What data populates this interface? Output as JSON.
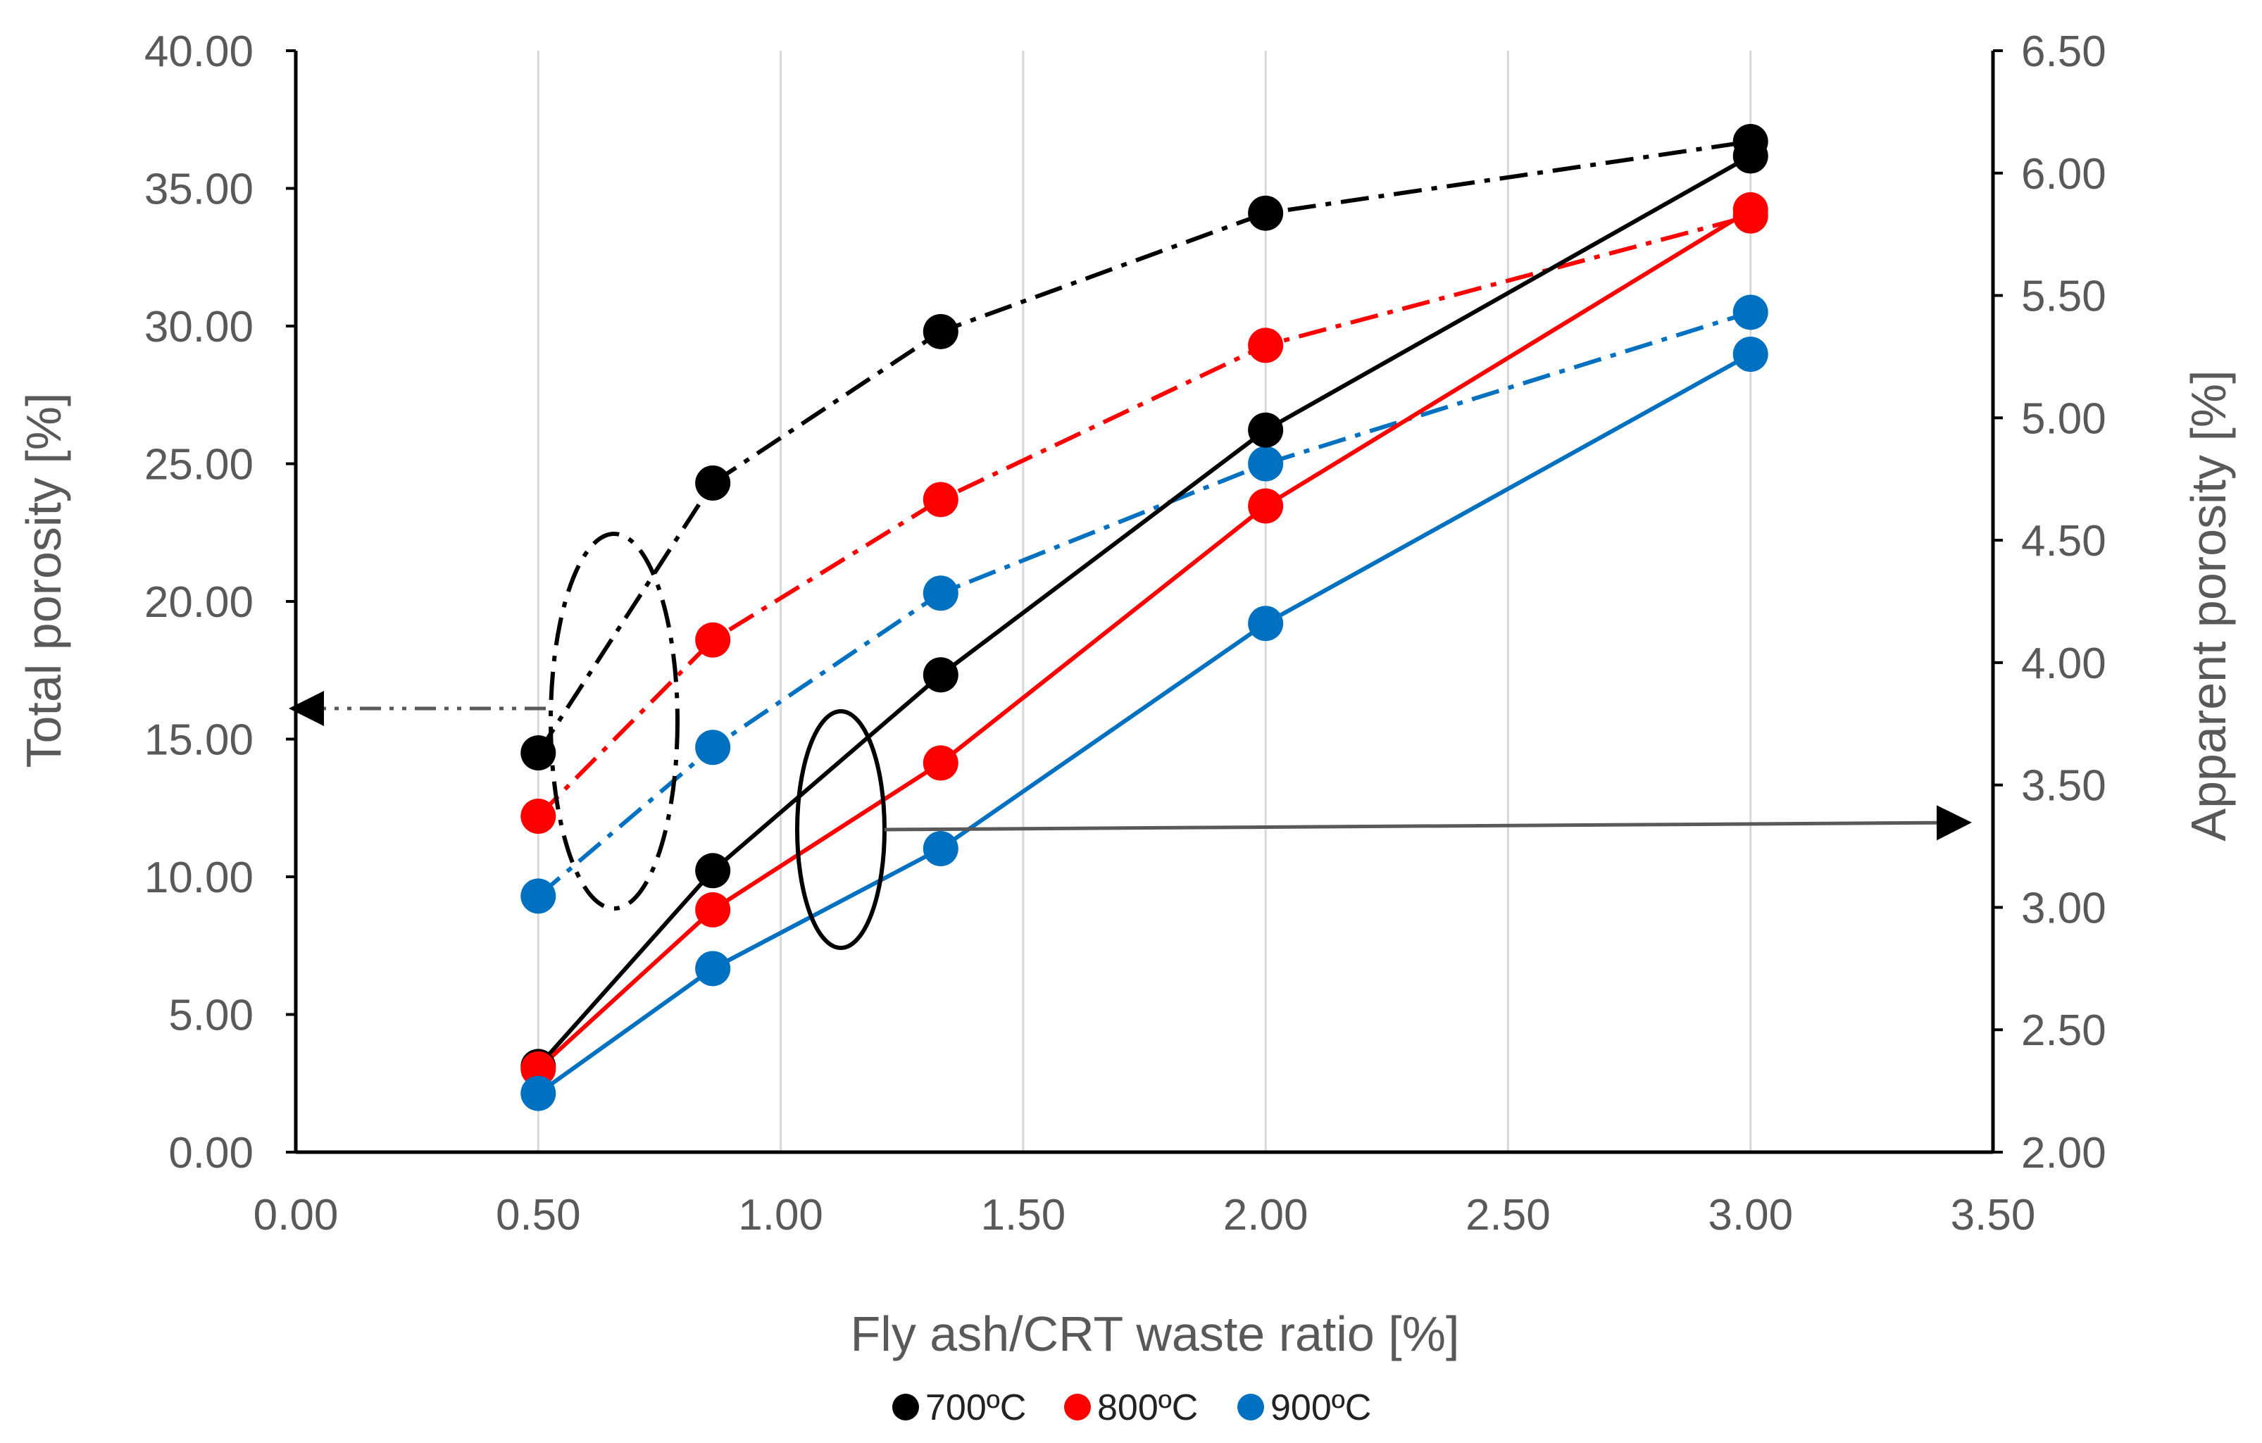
{
  "chart_data": {
    "type": "line",
    "title": "",
    "xlabel": "Fly ash/CRT waste ratio [%]",
    "ylabel_left": "Total porosity [%]",
    "ylabel_right": "Apparent porosity [%]",
    "xlim": [
      0,
      3.5
    ],
    "ylim_left": [
      0,
      40
    ],
    "ylim_right": [
      2,
      6.5
    ],
    "x_ticks": [
      "0.00",
      "0.50",
      "1.00",
      "1.50",
      "2.00",
      "2.50",
      "3.00",
      "3.50"
    ],
    "y_left_ticks": [
      "0.00",
      "5.00",
      "10.00",
      "15.00",
      "20.00",
      "25.00",
      "30.00",
      "35.00",
      "40.00"
    ],
    "y_right_ticks": [
      "2.00",
      "2.50",
      "3.00",
      "3.50",
      "4.00",
      "4.50",
      "5.00",
      "5.50",
      "6.00",
      "6.50"
    ],
    "grid": "vertical",
    "legend_position": "bottom",
    "x": [
      0.5,
      0.86,
      1.33,
      2.0,
      3.0
    ],
    "series": [
      {
        "name": "700ºC",
        "color": "#000000",
        "axis": "left",
        "style": "dashdot",
        "values": [
          14.5,
          24.3,
          29.8,
          34.1,
          36.7
        ]
      },
      {
        "name": "800ºC",
        "color": "#ff0000",
        "axis": "left",
        "style": "dashdot",
        "values": [
          12.2,
          18.6,
          23.7,
          29.3,
          34.0
        ]
      },
      {
        "name": "900ºC",
        "color": "#0070c0",
        "axis": "left",
        "style": "dashdot",
        "values": [
          9.3,
          14.7,
          20.3,
          25.0,
          30.5
        ]
      },
      {
        "name": "700ºC",
        "color": "#000000",
        "axis": "right",
        "style": "solid",
        "values": [
          2.35,
          3.15,
          3.95,
          4.95,
          6.07
        ]
      },
      {
        "name": "800ºC",
        "color": "#ff0000",
        "axis": "right",
        "style": "solid",
        "values": [
          2.34,
          2.99,
          3.59,
          4.64,
          5.85
        ]
      },
      {
        "name": "900ºC",
        "color": "#0070c0",
        "axis": "right",
        "style": "solid",
        "values": [
          2.24,
          2.75,
          3.24,
          4.16,
          5.26
        ]
      }
    ],
    "legend": [
      "700ºC",
      "800ºC",
      "900ºC"
    ]
  }
}
